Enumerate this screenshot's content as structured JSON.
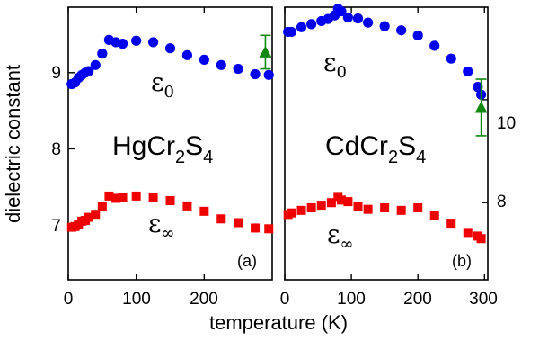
{
  "chart_data": [
    {
      "type": "scatter",
      "panel_label": "(a)",
      "compound": {
        "base1": "HgCr",
        "sub1": "2",
        "base2": "S",
        "sub2": "4"
      },
      "xlim": [
        0,
        300
      ],
      "ylim": [
        6.28,
        9.86
      ],
      "x_ticks": [
        "0",
        "100",
        "200"
      ],
      "y_ticks": [
        "7",
        "8",
        "9"
      ],
      "ylabel": "dielectric constant",
      "series": [
        {
          "label_base": "ε",
          "label_sub": "0",
          "marker": "circle",
          "color": "#0000ee",
          "points": [
            [
              5,
              8.85
            ],
            [
              10,
              8.87
            ],
            [
              15,
              8.93
            ],
            [
              20,
              8.97
            ],
            [
              25,
              9.0
            ],
            [
              30,
              9.02
            ],
            [
              40,
              9.1
            ],
            [
              50,
              9.25
            ],
            [
              60,
              9.43
            ],
            [
              70,
              9.4
            ],
            [
              80,
              9.38
            ],
            [
              100,
              9.42
            ],
            [
              125,
              9.4
            ],
            [
              150,
              9.32
            ],
            [
              175,
              9.23
            ],
            [
              200,
              9.17
            ],
            [
              225,
              9.1
            ],
            [
              250,
              9.05
            ],
            [
              275,
              8.98
            ],
            [
              295,
              8.97
            ]
          ]
        },
        {
          "label_base": "ε",
          "label_sub": "∞",
          "marker": "square",
          "color": "#ee0000",
          "points": [
            [
              5,
              6.97
            ],
            [
              10,
              6.98
            ],
            [
              15,
              7.0
            ],
            [
              20,
              7.05
            ],
            [
              25,
              7.06
            ],
            [
              30,
              7.1
            ],
            [
              40,
              7.14
            ],
            [
              50,
              7.24
            ],
            [
              60,
              7.38
            ],
            [
              70,
              7.35
            ],
            [
              80,
              7.36
            ],
            [
              100,
              7.38
            ],
            [
              125,
              7.36
            ],
            [
              150,
              7.32
            ],
            [
              175,
              7.25
            ],
            [
              200,
              7.18
            ],
            [
              225,
              7.08
            ],
            [
              250,
              7.03
            ],
            [
              275,
              6.96
            ],
            [
              295,
              6.95
            ]
          ]
        }
      ],
      "reference": {
        "marker": "triangle",
        "color": "#118811",
        "x": 290,
        "y": 9.27,
        "err": 0.22
      }
    },
    {
      "type": "scatter",
      "panel_label": "(b)",
      "compound": {
        "base1": "CdCr",
        "sub1": "2",
        "base2": "S",
        "sub2": "4"
      },
      "xlim": [
        0,
        305
      ],
      "ylim": [
        6.5,
        11.8
      ],
      "x_ticks": [
        "0",
        "100",
        "200",
        "300"
      ],
      "y_ticks": [
        "8",
        "10"
      ],
      "xlabel": "temperature (K)",
      "series": [
        {
          "label_base": "ε",
          "label_sub": "0",
          "marker": "circle",
          "color": "#0000ee",
          "points": [
            [
              5,
              11.32
            ],
            [
              10,
              11.32
            ],
            [
              25,
              11.41
            ],
            [
              40,
              11.47
            ],
            [
              55,
              11.53
            ],
            [
              65,
              11.57
            ],
            [
              75,
              11.64
            ],
            [
              80,
              11.77
            ],
            [
              85,
              11.72
            ],
            [
              95,
              11.6
            ],
            [
              110,
              11.58
            ],
            [
              125,
              11.5
            ],
            [
              150,
              11.43
            ],
            [
              175,
              11.35
            ],
            [
              200,
              11.25
            ],
            [
              225,
              11.05
            ],
            [
              250,
              10.8
            ],
            [
              275,
              10.55
            ],
            [
              290,
              10.25
            ],
            [
              295,
              10.1
            ]
          ]
        },
        {
          "label_base": "ε",
          "label_sub": "∞",
          "marker": "square",
          "color": "#ee0000",
          "points": [
            [
              5,
              7.77
            ],
            [
              10,
              7.8
            ],
            [
              25,
              7.85
            ],
            [
              40,
              7.9
            ],
            [
              55,
              7.95
            ],
            [
              70,
              8.0
            ],
            [
              80,
              8.12
            ],
            [
              85,
              8.05
            ],
            [
              95,
              8.02
            ],
            [
              110,
              7.93
            ],
            [
              125,
              7.87
            ],
            [
              150,
              7.9
            ],
            [
              175,
              7.85
            ],
            [
              200,
              7.9
            ],
            [
              225,
              7.75
            ],
            [
              250,
              7.6
            ],
            [
              275,
              7.42
            ],
            [
              290,
              7.35
            ],
            [
              295,
              7.3
            ]
          ]
        }
      ],
      "reference": {
        "marker": "triangle",
        "color": "#118811",
        "x": 295,
        "y": 9.85,
        "err": 0.55
      }
    }
  ]
}
